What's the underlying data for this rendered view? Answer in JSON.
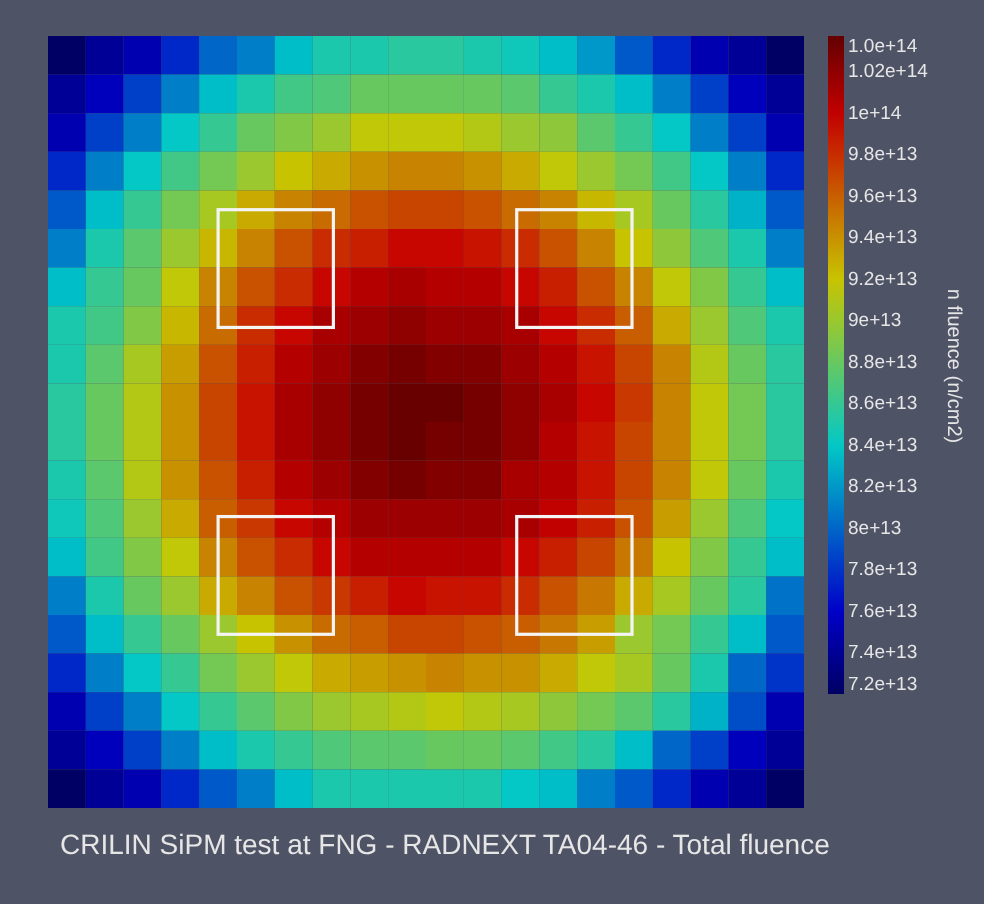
{
  "chart_data": {
    "type": "heatmap",
    "title": "CRILIN SiPM test at FNG - RADNEXT TA04-46 - Total fluence",
    "clabel": "n fluence (n/cm2)",
    "categories": [
      null,
      null,
      null,
      null,
      null,
      null,
      null,
      null,
      null,
      null,
      null,
      null,
      null,
      null,
      null,
      null,
      null,
      null,
      null,
      null
    ],
    "y_categories": [
      null,
      null,
      null,
      null,
      null,
      null,
      null,
      null,
      null,
      null,
      null,
      null,
      null,
      null,
      null,
      null,
      null,
      null,
      null,
      null
    ],
    "tick_labels": false,
    "clim": [
      72000000000000.0,
      103700000000000.0
    ],
    "cticks": [
      {
        "value": 72000000000000.0,
        "label": "7.2e+13"
      },
      {
        "value": 74000000000000.0,
        "label": "7.4e+13"
      },
      {
        "value": 76000000000000.0,
        "label": "7.6e+13"
      },
      {
        "value": 78000000000000.0,
        "label": "7.8e+13"
      },
      {
        "value": 80000000000000.0,
        "label": "8e+13"
      },
      {
        "value": 82000000000000.0,
        "label": "8.2e+13"
      },
      {
        "value": 84000000000000.0,
        "label": "8.4e+13"
      },
      {
        "value": 86000000000000.0,
        "label": "8.6e+13"
      },
      {
        "value": 88000000000000.0,
        "label": "8.8e+13"
      },
      {
        "value": 90000000000000.0,
        "label": "9e+13"
      },
      {
        "value": 92000000000000.0,
        "label": "9.2e+13"
      },
      {
        "value": 94000000000000.0,
        "label": "9.4e+13"
      },
      {
        "value": 96000000000000.0,
        "label": "9.6e+13"
      },
      {
        "value": 98000000000000.0,
        "label": "9.8e+13"
      },
      {
        "value": 100000000000000.0,
        "label": "1e+14"
      },
      {
        "value": 102000000000000.0,
        "label": "1.02e+14"
      },
      {
        "value": 103700000000000.0,
        "label": "1.0e+14"
      }
    ],
    "cells": [
      [
        72000000000000.0,
        74000000000000.0,
        75000000000000.0,
        77500000000000.0,
        80000000000000.0,
        81000000000000.0,
        83500000000000.0,
        85000000000000.0,
        85000000000000.0,
        85500000000000.0,
        85500000000000.0,
        85000000000000.0,
        84500000000000.0,
        83500000000000.0,
        82000000000000.0,
        79500000000000.0,
        77500000000000.0,
        75000000000000.0,
        74000000000000.0,
        72000000000000.0
      ],
      [
        74000000000000.0,
        75500000000000.0,
        78500000000000.0,
        81000000000000.0,
        83500000000000.0,
        85000000000000.0,
        86500000000000.0,
        87000000000000.0,
        88000000000000.0,
        88000000000000.0,
        88000000000000.0,
        88000000000000.0,
        87500000000000.0,
        86000000000000.0,
        85000000000000.0,
        83500000000000.0,
        81000000000000.0,
        78500000000000.0,
        75500000000000.0,
        74000000000000.0
      ],
      [
        75000000000000.0,
        78500000000000.0,
        81000000000000.0,
        84000000000000.0,
        86000000000000.0,
        88000000000000.0,
        89000000000000.0,
        90000000000000.0,
        91500000000000.0,
        91500000000000.0,
        91500000000000.0,
        91000000000000.0,
        90000000000000.0,
        89500000000000.0,
        87500000000000.0,
        86000000000000.0,
        84000000000000.0,
        81000000000000.0,
        78500000000000.0,
        75000000000000.0
      ],
      [
        77500000000000.0,
        81000000000000.0,
        84000000000000.0,
        86500000000000.0,
        88500000000000.0,
        90000000000000.0,
        92000000000000.0,
        93000000000000.0,
        94000000000000.0,
        94500000000000.0,
        94500000000000.0,
        94000000000000.0,
        93000000000000.0,
        91500000000000.0,
        90000000000000.0,
        88500000000000.0,
        86500000000000.0,
        84000000000000.0,
        81000000000000.0,
        77500000000000.0
      ],
      [
        79500000000000.0,
        83500000000000.0,
        86000000000000.0,
        88500000000000.0,
        90500000000000.0,
        93000000000000.0,
        94500000000000.0,
        95500000000000.0,
        96500000000000.0,
        97000000000000.0,
        97000000000000.0,
        96500000000000.0,
        95500000000000.0,
        94500000000000.0,
        92500000000000.0,
        90500000000000.0,
        88000000000000.0,
        85500000000000.0,
        83000000000000.0,
        79500000000000.0
      ],
      [
        81000000000000.0,
        85000000000000.0,
        87500000000000.0,
        90000000000000.0,
        92500000000000.0,
        94500000000000.0,
        96500000000000.0,
        98000000000000.0,
        98500000000000.0,
        99500000000000.0,
        99500000000000.0,
        99000000000000.0,
        98000000000000.0,
        96500000000000.0,
        94500000000000.0,
        92000000000000.0,
        89500000000000.0,
        87000000000000.0,
        85000000000000.0,
        81000000000000.0
      ],
      [
        83500000000000.0,
        86000000000000.0,
        88000000000000.0,
        91500000000000.0,
        94500000000000.0,
        96500000000000.0,
        98000000000000.0,
        99500000000000.0,
        100500000000000.0,
        101000000000000.0,
        100500000000000.0,
        100500000000000.0,
        99500000000000.0,
        98500000000000.0,
        96500000000000.0,
        94500000000000.0,
        91500000000000.0,
        89000000000000.0,
        86000000000000.0,
        83500000000000.0
      ],
      [
        85000000000000.0,
        86500000000000.0,
        89000000000000.0,
        92500000000000.0,
        95500000000000.0,
        98000000000000.0,
        99500000000000.0,
        101000000000000.0,
        101500000000000.0,
        102000000000000.0,
        101500000000000.0,
        101500000000000.0,
        101000000000000.0,
        99500000000000.0,
        98000000000000.0,
        96000000000000.0,
        93000000000000.0,
        90000000000000.0,
        87000000000000.0,
        85000000000000.0
      ],
      [
        85000000000000.0,
        87500000000000.0,
        90500000000000.0,
        93500000000000.0,
        96500000000000.0,
        98500000000000.0,
        100500000000000.0,
        101500000000000.0,
        102500000000000.0,
        103000000000000.0,
        102500000000000.0,
        102500000000000.0,
        101500000000000.0,
        100500000000000.0,
        99000000000000.0,
        97000000000000.0,
        94500000000000.0,
        91000000000000.0,
        88000000000000.0,
        85500000000000.0
      ],
      [
        85500000000000.0,
        88000000000000.0,
        91000000000000.0,
        94000000000000.0,
        97000000000000.0,
        99000000000000.0,
        101000000000000.0,
        102000000000000.0,
        103000000000000.0,
        103500000000000.0,
        103500000000000.0,
        103000000000000.0,
        102000000000000.0,
        101000000000000.0,
        99500000000000.0,
        97500000000000.0,
        94500000000000.0,
        91500000000000.0,
        88500000000000.0,
        85500000000000.0
      ],
      [
        85500000000000.0,
        88000000000000.0,
        91000000000000.0,
        94000000000000.0,
        97000000000000.0,
        99000000000000.0,
        101000000000000.0,
        102000000000000.0,
        103000000000000.0,
        103500000000000.0,
        103000000000000.0,
        103000000000000.0,
        102000000000000.0,
        100500000000000.0,
        99000000000000.0,
        97000000000000.0,
        94500000000000.0,
        91500000000000.0,
        88500000000000.0,
        85500000000000.0
      ],
      [
        85000000000000.0,
        87500000000000.0,
        91000000000000.0,
        94000000000000.0,
        96500000000000.0,
        98500000000000.0,
        100500000000000.0,
        101500000000000.0,
        102500000000000.0,
        103000000000000.0,
        102500000000000.0,
        102500000000000.0,
        101000000000000.0,
        100500000000000.0,
        99000000000000.0,
        97000000000000.0,
        94500000000000.0,
        91500000000000.0,
        88000000000000.0,
        85000000000000.0
      ],
      [
        84500000000000.0,
        87000000000000.0,
        90000000000000.0,
        93000000000000.0,
        96000000000000.0,
        97500000000000.0,
        99500000000000.0,
        100500000000000.0,
        101500000000000.0,
        101500000000000.0,
        101500000000000.0,
        101500000000000.0,
        101000000000000.0,
        100000000000000.0,
        98500000000000.0,
        96500000000000.0,
        93500000000000.0,
        90000000000000.0,
        87000000000000.0,
        84000000000000.0
      ],
      [
        83500000000000.0,
        86500000000000.0,
        89000000000000.0,
        91500000000000.0,
        94500000000000.0,
        96500000000000.0,
        98000000000000.0,
        99500000000000.0,
        100500000000000.0,
        100500000000000.0,
        100500000000000.0,
        100500000000000.0,
        99500000000000.0,
        98500000000000.0,
        97000000000000.0,
        95000000000000.0,
        92000000000000.0,
        89000000000000.0,
        86000000000000.0,
        83500000000000.0
      ],
      [
        81000000000000.0,
        85000000000000.0,
        88000000000000.0,
        90000000000000.0,
        93000000000000.0,
        94500000000000.0,
        96500000000000.0,
        97500000000000.0,
        98500000000000.0,
        99500000000000.0,
        99000000000000.0,
        99000000000000.0,
        98000000000000.0,
        96500000000000.0,
        95000000000000.0,
        93000000000000.0,
        90500000000000.0,
        88000000000000.0,
        85500000000000.0,
        80500000000000.0
      ],
      [
        79500000000000.0,
        83500000000000.0,
        86000000000000.0,
        88000000000000.0,
        90000000000000.0,
        92000000000000.0,
        94000000000000.0,
        95500000000000.0,
        96000000000000.0,
        97000000000000.0,
        97000000000000.0,
        96500000000000.0,
        96000000000000.0,
        95000000000000.0,
        93500000000000.0,
        90000000000000.0,
        88500000000000.0,
        86000000000000.0,
        83500000000000.0,
        79500000000000.0
      ],
      [
        77500000000000.0,
        81000000000000.0,
        84000000000000.0,
        86000000000000.0,
        88500000000000.0,
        90000000000000.0,
        91500000000000.0,
        93000000000000.0,
        93500000000000.0,
        94000000000000.0,
        94500000000000.0,
        94000000000000.0,
        94000000000000.0,
        93000000000000.0,
        91500000000000.0,
        90500000000000.0,
        88000000000000.0,
        85000000000000.0,
        80000000000000.0,
        78000000000000.0
      ],
      [
        75000000000000.0,
        78500000000000.0,
        81000000000000.0,
        84000000000000.0,
        86000000000000.0,
        87500000000000.0,
        89000000000000.0,
        90000000000000.0,
        90500000000000.0,
        91000000000000.0,
        91500000000000.0,
        91000000000000.0,
        90500000000000.0,
        89500000000000.0,
        88500000000000.0,
        87500000000000.0,
        85500000000000.0,
        83000000000000.0,
        79000000000000.0,
        75000000000000.0
      ],
      [
        74000000000000.0,
        75500000000000.0,
        78500000000000.0,
        81000000000000.0,
        83500000000000.0,
        85000000000000.0,
        86000000000000.0,
        87000000000000.0,
        87500000000000.0,
        87500000000000.0,
        88000000000000.0,
        88000000000000.0,
        87500000000000.0,
        86500000000000.0,
        85500000000000.0,
        83500000000000.0,
        80000000000000.0,
        78500000000000.0,
        75500000000000.0,
        74000000000000.0
      ],
      [
        72000000000000.0,
        74000000000000.0,
        75000000000000.0,
        77500000000000.0,
        79500000000000.0,
        81000000000000.0,
        83500000000000.0,
        85000000000000.0,
        85000000000000.0,
        85000000000000.0,
        85000000000000.0,
        85000000000000.0,
        84000000000000.0,
        83500000000000.0,
        81000000000000.0,
        79500000000000.0,
        77500000000000.0,
        75000000000000.0,
        74000000000000.0,
        72000000000000.0
      ]
    ]
  }
}
